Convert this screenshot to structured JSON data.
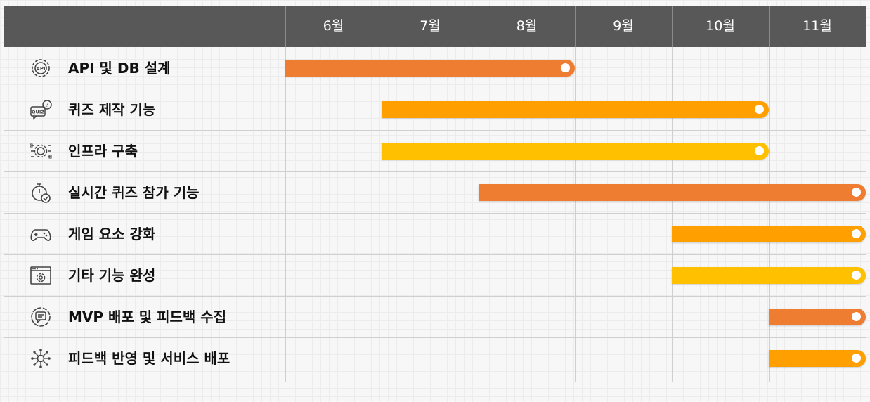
{
  "chart_data": {
    "type": "gantt",
    "months": [
      "6월",
      "7월",
      "8월",
      "9월",
      "10월",
      "11월"
    ],
    "tasks": [
      {
        "label": "API 및 DB 설계",
        "icon": "api-gear-icon",
        "start": 0,
        "end": 3,
        "color": "#ee7d32"
      },
      {
        "label": "퀴즈 제작 기능",
        "icon": "quiz-icon",
        "start": 1,
        "end": 5,
        "color": "#ff9f00"
      },
      {
        "label": "인프라 구축",
        "icon": "infrastructure-icon",
        "start": 1,
        "end": 5,
        "color": "#ffc000"
      },
      {
        "label": "실시간 퀴즈 참가 기능",
        "icon": "stopwatch-check-icon",
        "start": 2,
        "end": 6,
        "color": "#ee7d32"
      },
      {
        "label": "게임 요소 강화",
        "icon": "gamepad-icon",
        "start": 4,
        "end": 6,
        "color": "#ff9f00"
      },
      {
        "label": "기타 기능 완성",
        "icon": "settings-window-icon",
        "start": 4,
        "end": 6,
        "color": "#ffc000"
      },
      {
        "label": "MVP 배포 및 피드백 수집",
        "icon": "feedback-chat-icon",
        "start": 5,
        "end": 6,
        "color": "#ee7d32"
      },
      {
        "label": "피드백 반영 및 서비스 배포",
        "icon": "network-nodes-icon",
        "start": 5,
        "end": 6,
        "color": "#ff9f00"
      }
    ]
  }
}
